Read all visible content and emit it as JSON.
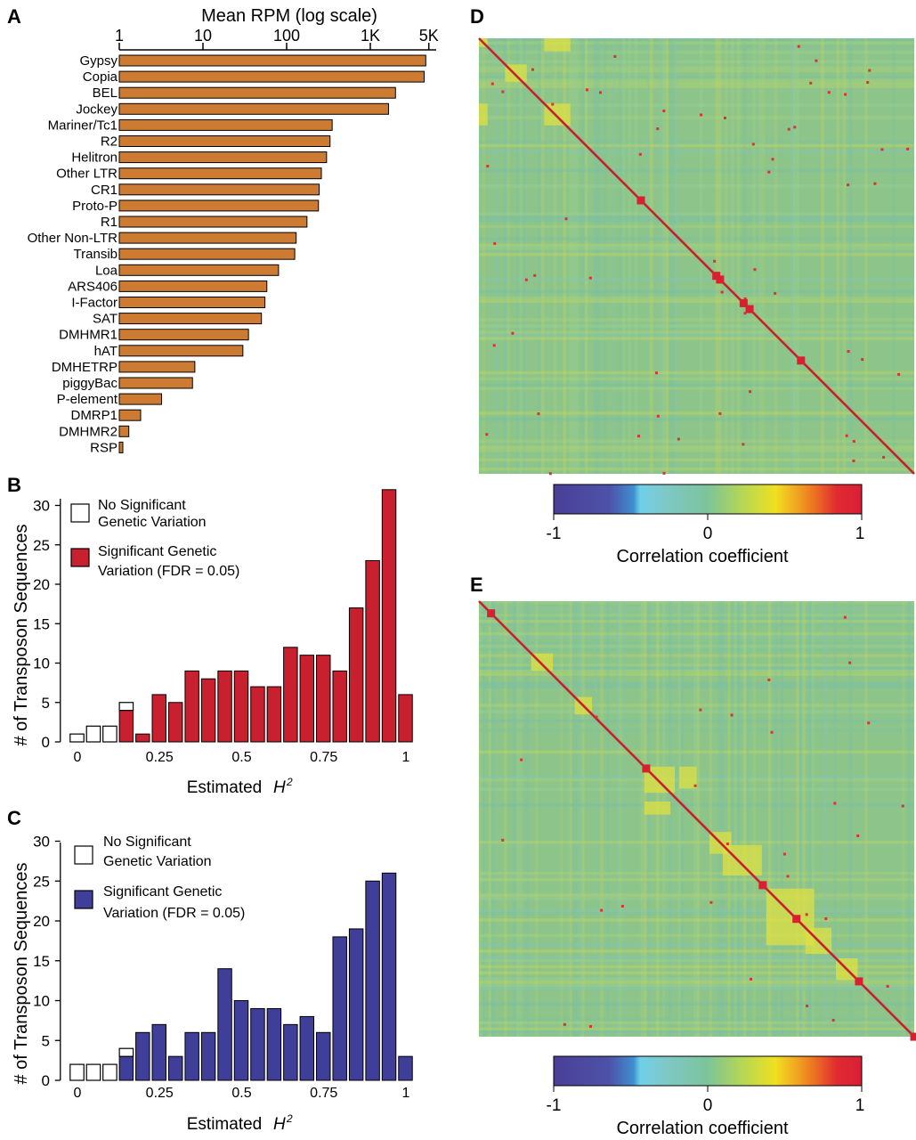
{
  "panels": {
    "A": "A",
    "B": "B",
    "C": "C",
    "D": "D",
    "E": "E"
  },
  "colors": {
    "bar_orange": "#cd7a32",
    "sig_red": "#c8202e",
    "sig_blue": "#3f3f9a",
    "nonsig": "#ffffff",
    "heatmap_base": "#8cc48a"
  },
  "legend": {
    "nonsig_line1": "No Significant",
    "nonsig_line2": "Genetic Variation",
    "sig_line1": "Significant Genetic",
    "sig_line2": "Variation (FDR = 0.05)"
  },
  "colorbar": {
    "label": "Correlation coefficient",
    "ticks": [
      "-1",
      "0",
      "1"
    ],
    "stops": [
      "#4a3f98",
      "#3f8fd0",
      "#7fcfe0",
      "#6fc0a0",
      "#9fcc60",
      "#e8e020",
      "#f08020",
      "#d82030"
    ]
  },
  "chart_data": [
    {
      "type": "bar",
      "panel": "A",
      "orientation": "horizontal",
      "title": "Mean RPM (log scale)",
      "xscale": "log",
      "xlim": [
        1,
        5000
      ],
      "xticks": [
        "1",
        "10",
        "100",
        "1K",
        "5K"
      ],
      "categories": [
        "Gypsy",
        "Copia",
        "BEL",
        "Jockey",
        "Mariner/Tc1",
        "R2",
        "Helitron",
        "Other LTR",
        "CR1",
        "Proto-P",
        "R1",
        "Other Non-LTR",
        "Transib",
        "Loa",
        "ARS406",
        "I-Factor",
        "SAT",
        "DMHMR1",
        "hAT",
        "DMHETRP",
        "piggyBac",
        "P-element",
        "DMRP1",
        "DMHMR2",
        "RSP"
      ],
      "values": [
        4600,
        4400,
        2000,
        1650,
        350,
        330,
        300,
        260,
        245,
        240,
        175,
        130,
        125,
        80,
        58,
        55,
        50,
        35,
        30,
        8,
        7.5,
        3.2,
        1.8,
        1.3,
        1.1
      ]
    },
    {
      "type": "bar",
      "panel": "B",
      "stacked": true,
      "xlabel": "Estimated",
      "xlabel_italic": "H",
      "xlabel_sup": "2",
      "ylabel": "# of Transposon Sequences",
      "ylim": [
        0,
        32
      ],
      "yticks": [
        "0",
        "5",
        "10",
        "15",
        "20",
        "25",
        "30"
      ],
      "xticks": [
        "0",
        "0.25",
        "0.5",
        "0.75",
        "1"
      ],
      "x": [
        0,
        0.05,
        0.1,
        0.15,
        0.2,
        0.25,
        0.3,
        0.35,
        0.4,
        0.45,
        0.5,
        0.55,
        0.6,
        0.65,
        0.7,
        0.75,
        0.8,
        0.85,
        0.9,
        0.95,
        1.0
      ],
      "series": [
        {
          "name": "Significant Genetic Variation (FDR = 0.05)",
          "values": [
            0,
            0,
            0,
            4,
            1,
            6,
            5,
            9,
            8,
            9,
            9,
            7,
            7,
            12,
            11,
            11,
            9,
            17,
            23,
            32,
            6
          ]
        },
        {
          "name": "No Significant Genetic Variation",
          "values": [
            1,
            2,
            2,
            1,
            0,
            0,
            0,
            0,
            0,
            0,
            0,
            0,
            0,
            0,
            0,
            0,
            0,
            0,
            0,
            0,
            0
          ]
        }
      ]
    },
    {
      "type": "bar",
      "panel": "C",
      "stacked": true,
      "xlabel": "Estimated",
      "xlabel_italic": "H",
      "xlabel_sup": "2",
      "ylabel": "# of Transposon Sequences",
      "ylim": [
        0,
        30
      ],
      "yticks": [
        "0",
        "5",
        "10",
        "15",
        "20",
        "25",
        "30"
      ],
      "xticks": [
        "0",
        "0.25",
        "0.5",
        "0.75",
        "1"
      ],
      "x": [
        0,
        0.05,
        0.1,
        0.15,
        0.2,
        0.25,
        0.3,
        0.35,
        0.4,
        0.45,
        0.5,
        0.55,
        0.6,
        0.65,
        0.7,
        0.75,
        0.8,
        0.85,
        0.9,
        0.95,
        1.0
      ],
      "series": [
        {
          "name": "Significant Genetic Variation (FDR = 0.05)",
          "values": [
            0,
            0,
            0,
            3,
            6,
            7,
            3,
            6,
            6,
            14,
            10,
            9,
            9,
            7,
            8,
            6,
            18,
            19,
            25,
            26,
            3
          ]
        },
        {
          "name": "No Significant Genetic Variation",
          "values": [
            2,
            2,
            2,
            1,
            0,
            0,
            0,
            0,
            0,
            0,
            0,
            0,
            0,
            0,
            0,
            0,
            0,
            0,
            0,
            0,
            0
          ]
        }
      ]
    },
    {
      "type": "heatmap",
      "panel": "D",
      "value_range": [
        -1,
        1
      ],
      "diagonal": 1,
      "colorbar_label": "Correlation coefficient"
    },
    {
      "type": "heatmap",
      "panel": "E",
      "value_range": [
        -1,
        1
      ],
      "diagonal": 1,
      "colorbar_label": "Correlation coefficient"
    }
  ]
}
